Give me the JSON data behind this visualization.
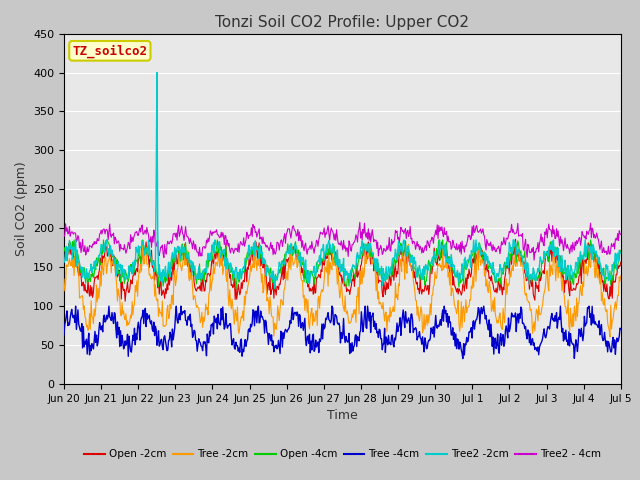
{
  "title": "Tonzi Soil CO2 Profile: Upper CO2",
  "ylabel": "Soil CO2 (ppm)",
  "xlabel": "Time",
  "ylim": [
    0,
    450
  ],
  "yticks": [
    0,
    50,
    100,
    150,
    200,
    250,
    300,
    350,
    400,
    450
  ],
  "fig_bg_color": "#c8c8c8",
  "plot_bg_color": "#e8e8e8",
  "legend_entries": [
    "Open -2cm",
    "Tree -2cm",
    "Open -4cm",
    "Tree -4cm",
    "Tree2 -2cm",
    "Tree2 - 4cm"
  ],
  "legend_colors": [
    "#dd0000",
    "#ff9900",
    "#00cc00",
    "#0000cc",
    "#00cccc",
    "#cc00cc"
  ],
  "watermark_text": "TZ_soilco2",
  "watermark_bg": "#ffffcc",
  "watermark_border": "#cccc00",
  "watermark_color": "#cc0000",
  "n_points": 720,
  "tick_labels": [
    "Jun 20",
    "Jun 21",
    "Jun 22",
    "Jun 23",
    "Jun 24",
    "Jun 25",
    "Jun 26",
    "Jun 27",
    "Jun 28",
    "Jun 29",
    "Jun 30",
    "Jul 1",
    "Jul 2",
    "Jul 3",
    "Jul 4",
    "Jul 5"
  ],
  "spike_day": 2.5
}
